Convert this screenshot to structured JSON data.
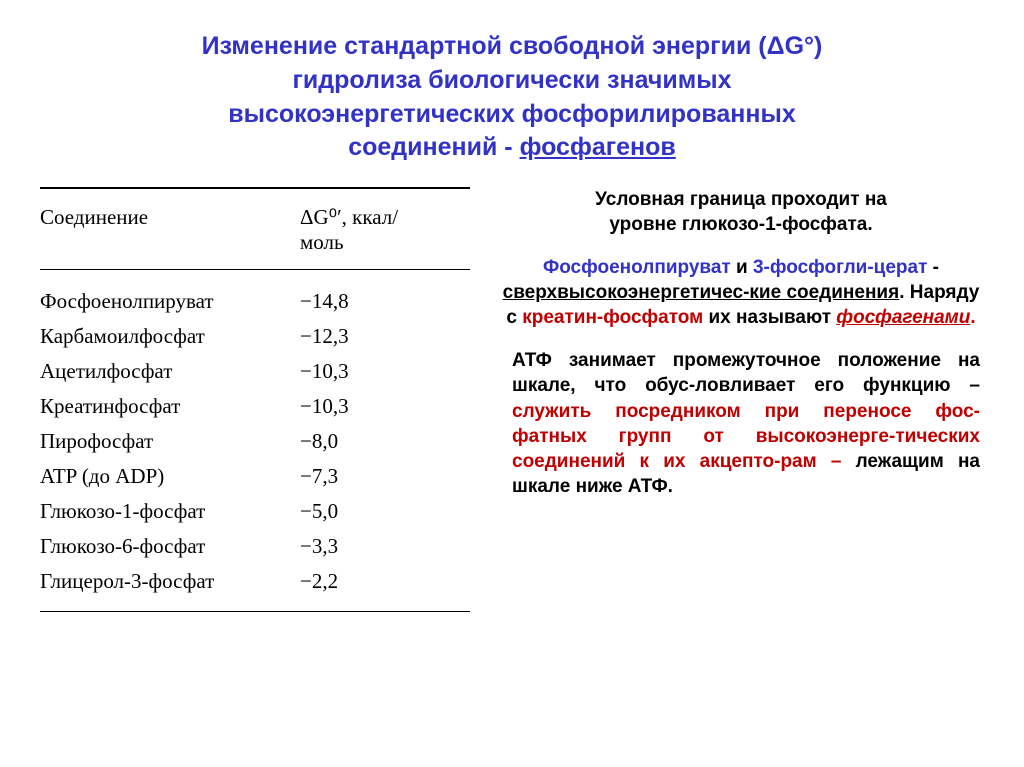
{
  "colors": {
    "title": "#3232c8",
    "plain": "#000000",
    "red": "#c00000",
    "blue": "#3232c8"
  },
  "fontsizes": {
    "title": 25,
    "table_header": 21,
    "table_row": 21,
    "paragraph": 19
  },
  "title": {
    "line1": "Изменение стандартной свободной энергии (ΔG°)",
    "line2": "гидролиза биологически значимых",
    "line3": "высокоэнергетических фосфорилированных",
    "line4_a": "соединений - ",
    "line4_b": "фосфагенов"
  },
  "table": {
    "header_compound": "Соединение",
    "header_value": "ΔG⁰′, ккал/моль",
    "rows": [
      {
        "name": "Фосфоенолпируват",
        "val": "−14,8"
      },
      {
        "name": "Карбамоилфосфат",
        "val": "−12,3"
      },
      {
        "name": "Ацетилфосфат",
        "val": "−10,3"
      },
      {
        "name": "Креатинфосфат",
        "val": "−10,3"
      },
      {
        "name": "Пирофосфат",
        "val": "−8,0"
      },
      {
        "name": "ATP (до ADP)",
        "val": "−7,3"
      },
      {
        "name": "Глюкозо-1-фосфат",
        "val": "−5,0"
      },
      {
        "name": "Глюкозо-6-фосфат",
        "val": "−3,3"
      },
      {
        "name": "Глицерол-3-фосфат",
        "val": "−2,2"
      }
    ]
  },
  "text": {
    "p1_line1": "Условная граница проходит на",
    "p1_line2": "уровне глюкозо-1-фосфата.",
    "p2_a": "Фосфоенолпируват",
    "p2_b": " и ",
    "p2_c": "3-фосфогли-церат",
    "p2_d": "  - ",
    "p2_e": "сверхвысокоэнергетичес-кие соединения",
    "p2_f": ". Наряду с ",
    "p2_g": "креатин-фосфатом",
    "p2_h": " их называют ",
    "p2_i": "фосфагенами",
    "p2_j": ".",
    "p3_a": "АТФ занимает промежуточное положение на шкале, что обус-ловливает его функцию – ",
    "p3_b": "служить посредником при переносе  фос-фатных групп от высокоэнерге-тических соединений к их акцепто-рам",
    "p3_c": " – ",
    "p3_d": "лежащим на шкале ниже АТФ."
  }
}
